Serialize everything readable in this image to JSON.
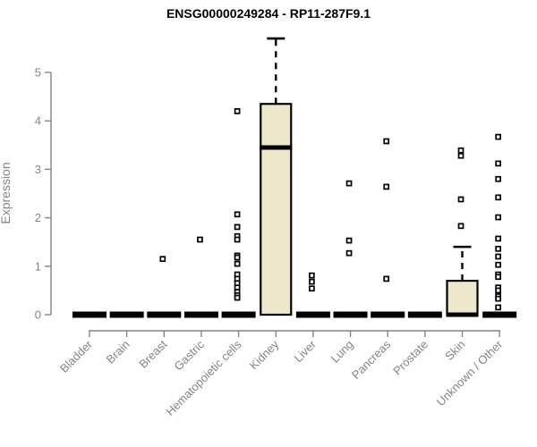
{
  "chart_data": {
    "type": "boxplot",
    "title": "ENSG00000249284 - RP11-287F9.1",
    "ylabel": "Expression",
    "xlabel": "",
    "ylim": [
      0,
      5.75
    ],
    "yticks": [
      0,
      1,
      2,
      3,
      4,
      5
    ],
    "grid": false,
    "legend": "none",
    "colors": {
      "box_fill": "#EDE7CC",
      "box_border": "#000000",
      "axis": "#848484",
      "title": "#000000",
      "outlier_fill": "#ffffff",
      "outlier_border": "#000000"
    },
    "categories": [
      "Bladder",
      "Brain",
      "Breast",
      "Gastric",
      "Hematopoietic cells",
      "Kidney",
      "Liver",
      "Lung",
      "Pancreas",
      "Prostate",
      "Skin",
      "Unknown / Other"
    ],
    "boxes": [
      {
        "category": "Bladder",
        "min": 0,
        "q1": 0,
        "median": 0,
        "q3": 0,
        "whisker_high": 0,
        "outliers": []
      },
      {
        "category": "Brain",
        "min": 0,
        "q1": 0,
        "median": 0,
        "q3": 0,
        "whisker_high": 0,
        "outliers": []
      },
      {
        "category": "Breast",
        "min": 0,
        "q1": 0,
        "median": 0,
        "q3": 0,
        "whisker_high": 0,
        "outliers": [
          1.15
        ]
      },
      {
        "category": "Gastric",
        "min": 0,
        "q1": 0,
        "median": 0,
        "q3": 0,
        "whisker_high": 0,
        "outliers": [
          1.55
        ]
      },
      {
        "category": "Hematopoietic cells",
        "min": 0,
        "q1": 0,
        "median": 0,
        "q3": 0,
        "whisker_high": 0,
        "outliers": [
          4.2,
          2.07,
          1.81,
          1.62,
          1.55,
          1.22,
          1.18,
          1.05,
          0.83,
          0.74,
          0.65,
          0.56,
          0.47,
          0.4,
          0.35
        ]
      },
      {
        "category": "Kidney",
        "min": 0,
        "q1": 0,
        "median": 3.45,
        "q3": 4.35,
        "whisker_high": 5.7,
        "outliers": []
      },
      {
        "category": "Liver",
        "min": 0,
        "q1": 0,
        "median": 0,
        "q3": 0,
        "whisker_high": 0,
        "outliers": [
          0.81,
          0.68,
          0.54
        ]
      },
      {
        "category": "Lung",
        "min": 0,
        "q1": 0,
        "median": 0,
        "q3": 0,
        "whisker_high": 0,
        "outliers": [
          2.71,
          1.53,
          1.27
        ]
      },
      {
        "category": "Pancreas",
        "min": 0,
        "q1": 0,
        "median": 0,
        "q3": 0,
        "whisker_high": 0,
        "outliers": [
          3.58,
          2.64,
          0.74
        ]
      },
      {
        "category": "Prostate",
        "min": 0,
        "q1": 0,
        "median": 0,
        "q3": 0,
        "whisker_high": 0,
        "outliers": []
      },
      {
        "category": "Skin",
        "min": 0,
        "q1": 0,
        "median": 0,
        "q3": 0.7,
        "whisker_high": 1.4,
        "outliers": [
          3.39,
          3.28,
          2.38,
          1.83
        ]
      },
      {
        "category": "Unknown / Other",
        "min": 0,
        "q1": 0,
        "median": 0,
        "q3": 0,
        "whisker_high": 0,
        "outliers": [
          3.67,
          3.12,
          2.8,
          2.42,
          2.01,
          1.57,
          1.36,
          1.2,
          1.03,
          0.83,
          0.78,
          0.56,
          0.5,
          0.38,
          0.33,
          0.15
        ]
      }
    ]
  }
}
